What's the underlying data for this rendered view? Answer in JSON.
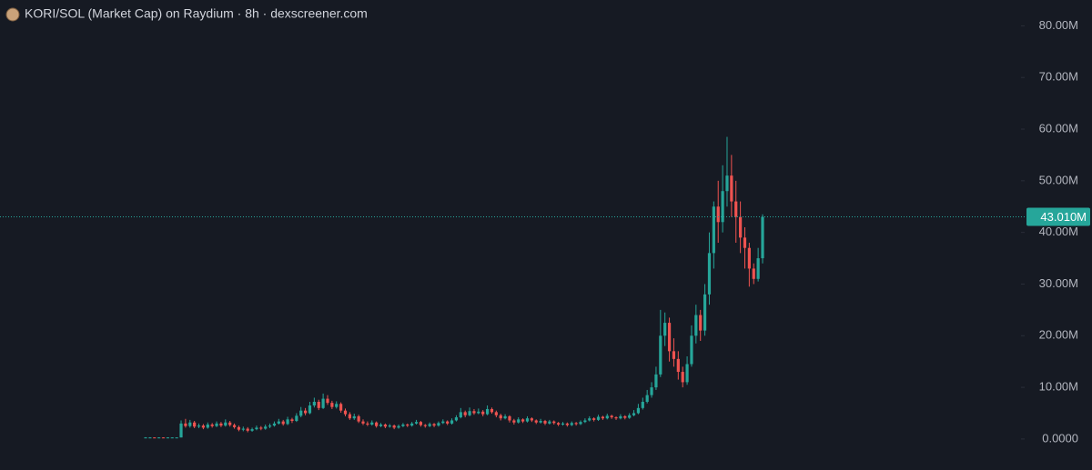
{
  "chart_data": {
    "type": "candlestick",
    "title": "KORI/SOL (Market Cap) on Raydium · 8h · dexscreener.com",
    "ohlc": [
      [
        0.3,
        0.35,
        0.25,
        0.3
      ],
      [
        0.3,
        0.35,
        0.25,
        0.3
      ],
      [
        0.3,
        0.32,
        0.22,
        0.25
      ],
      [
        0.25,
        0.32,
        0.22,
        0.3
      ],
      [
        0.3,
        0.32,
        0.25,
        0.28
      ],
      [
        0.28,
        0.32,
        0.25,
        0.3
      ],
      [
        0.3,
        0.33,
        0.27,
        0.3
      ],
      [
        0.3,
        0.33,
        0.27,
        0.3
      ],
      [
        0.3,
        3.6,
        0.3,
        3.0
      ],
      [
        3.0,
        3.9,
        2.2,
        2.5
      ],
      [
        2.5,
        3.7,
        2.2,
        3.2
      ],
      [
        3.2,
        3.5,
        2.1,
        2.4
      ],
      [
        2.4,
        3.0,
        2.1,
        2.6
      ],
      [
        2.6,
        2.9,
        1.9,
        2.2
      ],
      [
        2.2,
        3.2,
        2.0,
        2.8
      ],
      [
        2.8,
        3.1,
        2.2,
        2.5
      ],
      [
        2.5,
        3.4,
        2.3,
        3.0
      ],
      [
        3.0,
        3.3,
        2.3,
        2.6
      ],
      [
        2.6,
        3.8,
        2.4,
        3.2
      ],
      [
        3.2,
        3.5,
        2.4,
        2.7
      ],
      [
        2.7,
        3.0,
        2.0,
        2.3
      ],
      [
        2.3,
        2.6,
        1.5,
        1.8
      ],
      [
        1.8,
        2.4,
        1.5,
        2.0
      ],
      [
        2.0,
        2.3,
        1.3,
        1.6
      ],
      [
        1.6,
        2.2,
        1.4,
        1.9
      ],
      [
        1.9,
        2.6,
        1.7,
        2.2
      ],
      [
        2.2,
        2.5,
        1.7,
        2.0
      ],
      [
        2.0,
        2.8,
        1.8,
        2.4
      ],
      [
        2.4,
        3.0,
        2.1,
        2.6
      ],
      [
        2.6,
        3.4,
        2.4,
        3.0
      ],
      [
        3.0,
        3.9,
        2.8,
        3.4
      ],
      [
        3.4,
        3.7,
        2.6,
        2.9
      ],
      [
        2.9,
        4.3,
        2.7,
        3.8
      ],
      [
        3.8,
        4.1,
        3.1,
        3.5
      ],
      [
        3.5,
        5.0,
        3.3,
        4.5
      ],
      [
        4.5,
        6.2,
        4.2,
        5.5
      ],
      [
        5.5,
        6.0,
        4.6,
        5.0
      ],
      [
        5.0,
        7.2,
        4.8,
        6.5
      ],
      [
        6.5,
        8.0,
        6.1,
        7.2
      ],
      [
        7.2,
        7.6,
        5.6,
        6.0
      ],
      [
        6.0,
        8.8,
        5.8,
        7.8
      ],
      [
        7.8,
        8.5,
        6.6,
        7.0
      ],
      [
        7.0,
        7.4,
        5.8,
        6.2
      ],
      [
        6.2,
        7.3,
        5.9,
        6.8
      ],
      [
        6.8,
        7.1,
        5.1,
        5.5
      ],
      [
        5.5,
        5.9,
        4.4,
        4.8
      ],
      [
        4.8,
        5.2,
        3.7,
        4.0
      ],
      [
        4.0,
        4.9,
        3.7,
        4.4
      ],
      [
        4.4,
        4.7,
        3.1,
        3.4
      ],
      [
        3.4,
        3.8,
        2.7,
        3.0
      ],
      [
        3.0,
        3.4,
        2.5,
        2.8
      ],
      [
        2.8,
        3.6,
        2.6,
        3.2
      ],
      [
        3.2,
        3.4,
        2.2,
        2.5
      ],
      [
        2.5,
        3.1,
        2.3,
        2.8
      ],
      [
        2.8,
        3.0,
        2.1,
        2.4
      ],
      [
        2.4,
        2.9,
        2.2,
        2.6
      ],
      [
        2.6,
        2.8,
        1.9,
        2.2
      ],
      [
        2.2,
        2.8,
        2.0,
        2.5
      ],
      [
        2.5,
        3.1,
        2.3,
        2.8
      ],
      [
        2.8,
        3.0,
        2.3,
        2.6
      ],
      [
        2.6,
        3.3,
        2.4,
        3.0
      ],
      [
        3.0,
        3.7,
        2.8,
        3.3
      ],
      [
        3.3,
        3.5,
        2.4,
        2.7
      ],
      [
        2.7,
        2.9,
        2.2,
        2.5
      ],
      [
        2.5,
        3.2,
        2.3,
        2.9
      ],
      [
        2.9,
        3.1,
        2.3,
        2.6
      ],
      [
        2.6,
        3.4,
        2.4,
        3.1
      ],
      [
        3.1,
        3.8,
        2.9,
        3.4
      ],
      [
        3.4,
        3.6,
        2.7,
        3.0
      ],
      [
        3.0,
        4.0,
        2.8,
        3.6
      ],
      [
        3.6,
        4.6,
        3.4,
        4.2
      ],
      [
        4.2,
        6.0,
        4.0,
        5.2
      ],
      [
        5.2,
        5.5,
        4.2,
        4.6
      ],
      [
        4.6,
        6.1,
        4.4,
        5.4
      ],
      [
        5.4,
        5.8,
        4.7,
        5.0
      ],
      [
        5.0,
        5.9,
        4.8,
        5.3
      ],
      [
        5.3,
        5.6,
        4.4,
        4.8
      ],
      [
        4.8,
        6.5,
        4.6,
        5.8
      ],
      [
        5.8,
        6.1,
        4.9,
        5.2
      ],
      [
        5.2,
        5.5,
        4.2,
        4.6
      ],
      [
        4.6,
        4.9,
        3.6,
        4.0
      ],
      [
        4.0,
        4.8,
        3.8,
        4.4
      ],
      [
        4.4,
        4.6,
        3.2,
        3.6
      ],
      [
        3.6,
        3.9,
        2.8,
        3.2
      ],
      [
        3.2,
        4.2,
        3.0,
        3.8
      ],
      [
        3.8,
        4.0,
        3.1,
        3.4
      ],
      [
        3.4,
        4.4,
        3.2,
        4.0
      ],
      [
        4.0,
        4.2,
        3.3,
        3.6
      ],
      [
        3.6,
        3.8,
        2.9,
        3.2
      ],
      [
        3.2,
        3.9,
        3.0,
        3.5
      ],
      [
        3.5,
        3.7,
        2.7,
        3.0
      ],
      [
        3.0,
        3.7,
        2.8,
        3.4
      ],
      [
        3.4,
        3.6,
        2.8,
        3.1
      ],
      [
        3.1,
        3.3,
        2.5,
        2.8
      ],
      [
        2.8,
        3.3,
        2.6,
        3.0
      ],
      [
        3.0,
        3.2,
        2.4,
        2.7
      ],
      [
        2.7,
        3.4,
        2.5,
        3.1
      ],
      [
        3.1,
        3.3,
        2.6,
        2.9
      ],
      [
        2.9,
        3.6,
        2.7,
        3.3
      ],
      [
        3.3,
        4.0,
        3.1,
        3.6
      ],
      [
        3.6,
        4.4,
        3.4,
        4.0
      ],
      [
        4.0,
        4.2,
        3.4,
        3.7
      ],
      [
        3.7,
        4.7,
        3.5,
        4.3
      ],
      [
        4.3,
        4.5,
        3.7,
        4.0
      ],
      [
        4.0,
        4.9,
        3.8,
        4.5
      ],
      [
        4.5,
        4.7,
        3.9,
        4.2
      ],
      [
        4.2,
        4.4,
        3.7,
        4.0
      ],
      [
        4.0,
        4.8,
        3.8,
        4.4
      ],
      [
        4.4,
        4.6,
        3.8,
        4.1
      ],
      [
        4.1,
        5.0,
        3.9,
        4.6
      ],
      [
        4.6,
        5.6,
        4.4,
        5.0
      ],
      [
        5.0,
        6.8,
        4.8,
        6.0
      ],
      [
        6.0,
        8.0,
        5.7,
        7.2
      ],
      [
        7.2,
        9.5,
        6.9,
        8.5
      ],
      [
        8.5,
        11.0,
        8.0,
        10.0
      ],
      [
        10.0,
        14.0,
        9.5,
        12.5
      ],
      [
        12.5,
        25.0,
        12.0,
        20.0
      ],
      [
        20.0,
        24.5,
        18.0,
        22.5
      ],
      [
        22.5,
        23.5,
        15.0,
        17.0
      ],
      [
        17.0,
        19.5,
        14.0,
        15.5
      ],
      [
        15.5,
        17.0,
        11.5,
        13.0
      ],
      [
        13.0,
        14.0,
        10.0,
        11.0
      ],
      [
        11.0,
        16.0,
        10.5,
        14.5
      ],
      [
        14.5,
        22.0,
        14.0,
        20.0
      ],
      [
        20.0,
        26.0,
        18.5,
        24.0
      ],
      [
        24.0,
        25.0,
        19.0,
        21.0
      ],
      [
        21.0,
        30.0,
        20.0,
        28.0
      ],
      [
        28.0,
        40.0,
        26.0,
        36.0
      ],
      [
        36.0,
        46.0,
        33.0,
        45.0
      ],
      [
        45.0,
        50.0,
        38.0,
        42.0
      ],
      [
        42.0,
        53.0,
        40.0,
        48.0
      ],
      [
        48.0,
        58.5,
        45.0,
        51.0
      ],
      [
        51.0,
        55.0,
        43.0,
        46.0
      ],
      [
        46.0,
        50.0,
        38.0,
        43.0
      ],
      [
        43.0,
        46.0,
        36.0,
        39.0
      ],
      [
        39.0,
        41.0,
        33.0,
        37.0
      ],
      [
        37.0,
        38.0,
        29.5,
        33.0
      ],
      [
        33.0,
        34.0,
        30.0,
        31.0
      ],
      [
        31.0,
        37.0,
        30.5,
        35.0
      ],
      [
        35.0,
        43.5,
        34.0,
        43.01
      ]
    ],
    "up_color": "#26a69a",
    "down_color": "#ef5350",
    "ylim": [
      -6,
      85
    ],
    "yticks": [
      {
        "value": 0,
        "label": "0.0000"
      },
      {
        "value": 10,
        "label": "10.00M"
      },
      {
        "value": 20,
        "label": "20.00M"
      },
      {
        "value": 30,
        "label": "30.00M"
      },
      {
        "value": 40,
        "label": "40.00M"
      },
      {
        "value": 50,
        "label": "50.00M"
      },
      {
        "value": 60,
        "label": "60.00M"
      },
      {
        "value": 70,
        "label": "70.00M"
      },
      {
        "value": 80,
        "label": "80.00M"
      }
    ],
    "last_price": {
      "value": 43.01,
      "label": "43.010M"
    }
  }
}
